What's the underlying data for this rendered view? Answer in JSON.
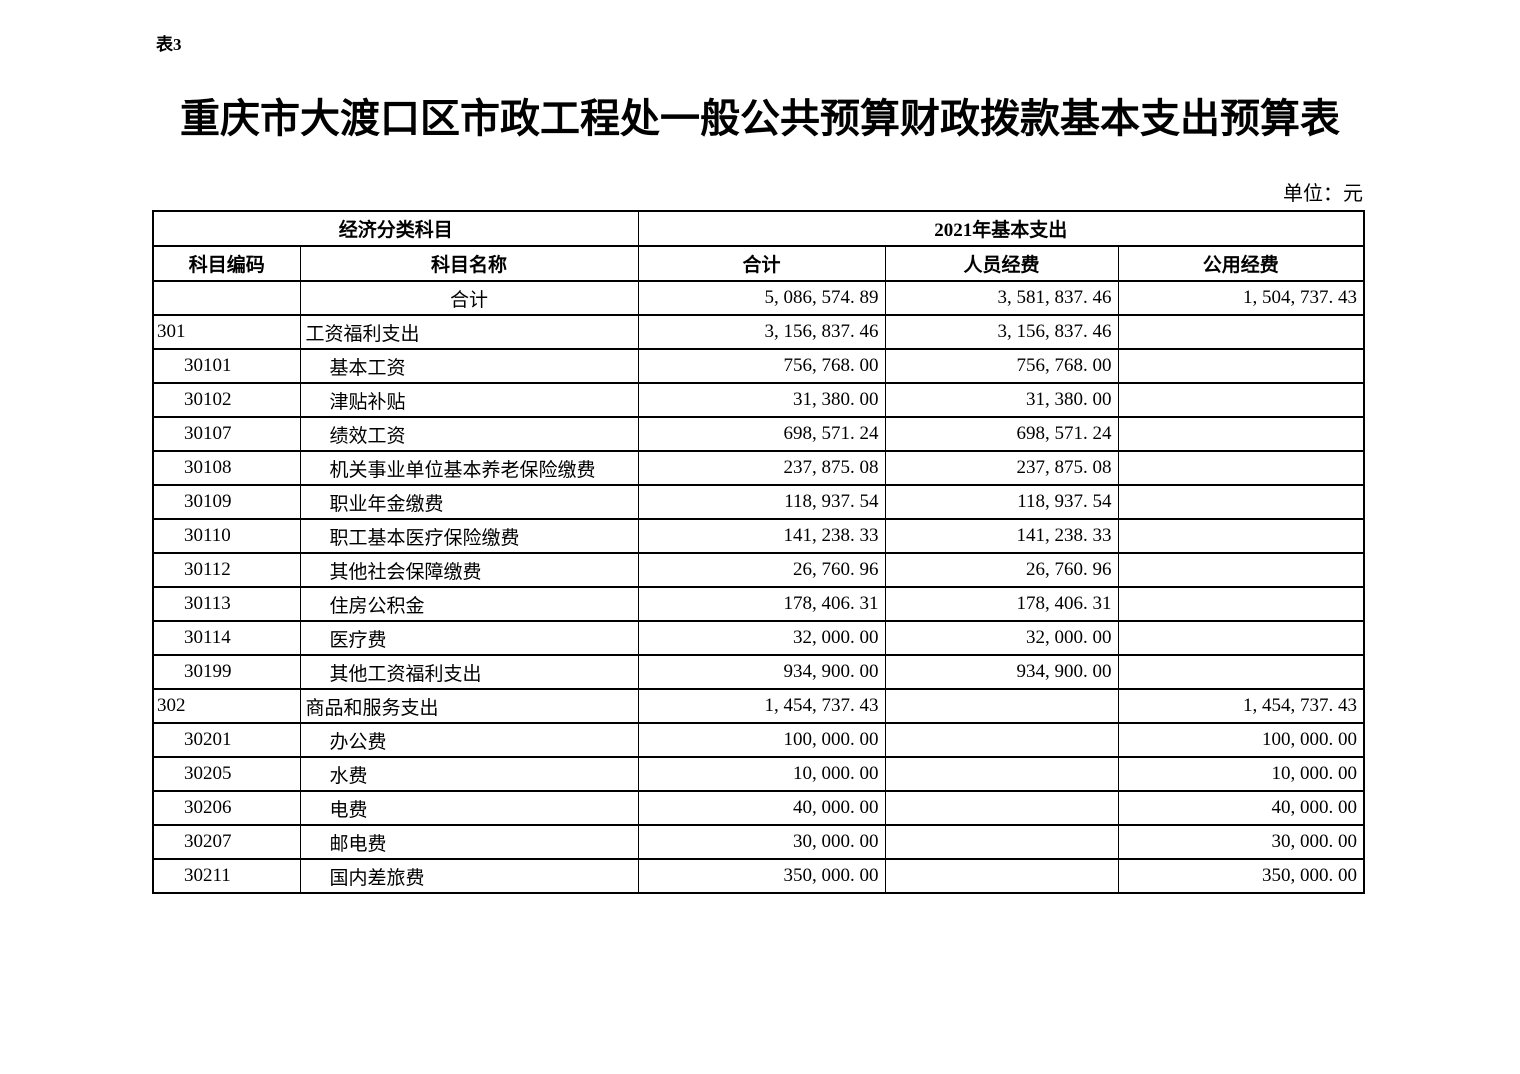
{
  "page": {
    "sheet_label": "表3",
    "title": "重庆市大渡口区市政工程处一般公共预算财政拨款基本支出预算表",
    "unit_label": "单位：元"
  },
  "table": {
    "header": {
      "group1": "经济分类科目",
      "group2": "2021年基本支出",
      "columns": [
        "科目编码",
        "科目名称",
        "合计",
        "人员经费",
        "公用经费"
      ]
    },
    "rows": [
      {
        "level": "total",
        "code": "",
        "name": "合计",
        "total": "5, 086, 574. 89",
        "personnel": "3, 581, 837. 46",
        "public": "1, 504, 737. 43"
      },
      {
        "level": "category",
        "code": "301",
        "name": "工资福利支出",
        "total": "3, 156, 837. 46",
        "personnel": "3, 156, 837. 46",
        "public": ""
      },
      {
        "level": "item",
        "code": "30101",
        "name": "基本工资",
        "total": "756, 768. 00",
        "personnel": "756, 768. 00",
        "public": ""
      },
      {
        "level": "item",
        "code": "30102",
        "name": "津贴补贴",
        "total": "31, 380. 00",
        "personnel": "31, 380. 00",
        "public": ""
      },
      {
        "level": "item",
        "code": "30107",
        "name": "绩效工资",
        "total": "698, 571. 24",
        "personnel": "698, 571. 24",
        "public": ""
      },
      {
        "level": "item",
        "code": "30108",
        "name": "机关事业单位基本养老保险缴费",
        "total": "237, 875. 08",
        "personnel": "237, 875. 08",
        "public": ""
      },
      {
        "level": "item",
        "code": "30109",
        "name": "职业年金缴费",
        "total": "118, 937. 54",
        "personnel": "118, 937. 54",
        "public": ""
      },
      {
        "level": "item",
        "code": "30110",
        "name": "职工基本医疗保险缴费",
        "total": "141, 238. 33",
        "personnel": "141, 238. 33",
        "public": ""
      },
      {
        "level": "item",
        "code": "30112",
        "name": "其他社会保障缴费",
        "total": "26, 760. 96",
        "personnel": "26, 760. 96",
        "public": ""
      },
      {
        "level": "item",
        "code": "30113",
        "name": "住房公积金",
        "total": "178, 406. 31",
        "personnel": "178, 406. 31",
        "public": ""
      },
      {
        "level": "item",
        "code": "30114",
        "name": "医疗费",
        "total": "32, 000. 00",
        "personnel": "32, 000. 00",
        "public": ""
      },
      {
        "level": "item",
        "code": "30199",
        "name": "其他工资福利支出",
        "total": "934, 900. 00",
        "personnel": "934, 900. 00",
        "public": ""
      },
      {
        "level": "category",
        "code": "302",
        "name": "商品和服务支出",
        "total": "1, 454, 737. 43",
        "personnel": "",
        "public": "1, 454, 737. 43"
      },
      {
        "level": "item",
        "code": "30201",
        "name": "办公费",
        "total": "100, 000. 00",
        "personnel": "",
        "public": "100, 000. 00"
      },
      {
        "level": "item",
        "code": "30205",
        "name": "水费",
        "total": "10, 000. 00",
        "personnel": "",
        "public": "10, 000. 00"
      },
      {
        "level": "item",
        "code": "30206",
        "name": "电费",
        "total": "40, 000. 00",
        "personnel": "",
        "public": "40, 000. 00"
      },
      {
        "level": "item",
        "code": "30207",
        "name": "邮电费",
        "total": "30, 000. 00",
        "personnel": "",
        "public": "30, 000. 00"
      },
      {
        "level": "item",
        "code": "30211",
        "name": "国内差旅费",
        "total": "350, 000. 00",
        "personnel": "",
        "public": "350, 000. 00"
      }
    ]
  }
}
